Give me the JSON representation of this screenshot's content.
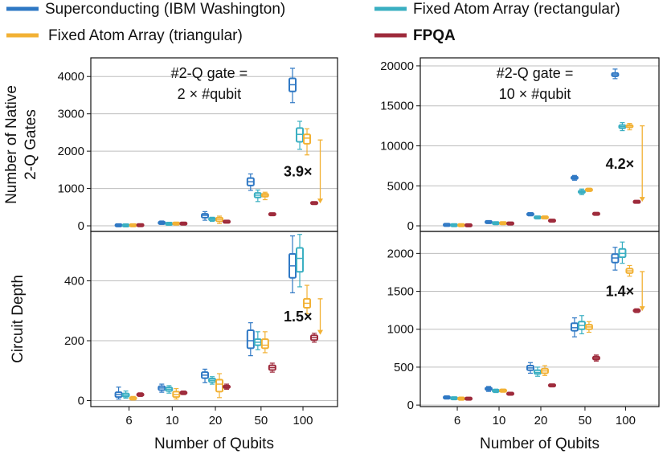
{
  "chart_data": {
    "type": "box",
    "legend": [
      {
        "name": "Superconducting (IBM Washington)",
        "color": "#2f78c4",
        "bold": false
      },
      {
        "name": "Fixed Atom Array (rectangular)",
        "color": "#3aafc2",
        "bold": false
      },
      {
        "name": "Fixed Atom Array (triangular)",
        "color": "#f2b134",
        "bold": false
      },
      {
        "name": "FPQA",
        "color": "#9e2a3b",
        "bold": true
      }
    ],
    "categories": [
      "6",
      "10",
      "20",
      "50",
      "100"
    ],
    "xlabel": "Number of Qubits",
    "panels": [
      {
        "id": "tl",
        "ylabel_lines": [
          "Number of Native",
          "2-Q Gates"
        ],
        "ylim": [
          -150,
          4500
        ],
        "yticks": [
          "0",
          "1000",
          "2000",
          "3000",
          "4000"
        ],
        "annotation_lines": [
          "#2-Q gate =",
          "2 × #qubit"
        ],
        "ratio": {
          "label": "3.9×",
          "from": 2300,
          "to": 600
        },
        "boxes": [
          [
            [
              5,
              10,
              15,
              20,
              30
            ],
            [
              3,
              8,
              12,
              16,
              24
            ],
            [
              4,
              9,
              13,
              18,
              26
            ],
            [
              10,
              14,
              18,
              22,
              28
            ]
          ],
          [
            [
              40,
              60,
              80,
              100,
              130
            ],
            [
              30,
              45,
              55,
              65,
              80
            ],
            [
              35,
              50,
              60,
              72,
              90
            ],
            [
              50,
              55,
              60,
              65,
              70
            ]
          ],
          [
            [
              150,
              220,
              280,
              320,
              380
            ],
            [
              120,
              160,
              185,
              200,
              230
            ],
            [
              60,
              120,
              170,
              220,
              260
            ],
            [
              90,
              100,
              110,
              120,
              130
            ]
          ],
          [
            [
              950,
              1080,
              1180,
              1280,
              1390
            ],
            [
              650,
              760,
              820,
              880,
              960
            ],
            [
              700,
              780,
              820,
              860,
              900
            ],
            [
              290,
              300,
              310,
              320,
              330
            ]
          ],
          [
            [
              3300,
              3600,
              3780,
              3950,
              4220
            ],
            [
              2050,
              2250,
              2450,
              2620,
              2800
            ],
            [
              1900,
              2200,
              2350,
              2450,
              2600
            ],
            [
              580,
              600,
              610,
              620,
              640
            ]
          ]
        ]
      },
      {
        "id": "tr",
        "ylabel_lines": [],
        "ylim": [
          -700,
          21000
        ],
        "yticks": [
          "0",
          "5000",
          "10000",
          "15000",
          "20000"
        ],
        "annotation_lines": [
          "#2-Q gate =",
          "10 × #qubit"
        ],
        "ratio": {
          "label": "4.2×",
          "from": 12500,
          "to": 3000
        },
        "boxes": [
          [
            [
              60,
              90,
              110,
              130,
              160
            ],
            [
              40,
              60,
              80,
              100,
              120
            ],
            [
              40,
              60,
              80,
              100,
              120
            ],
            [
              50,
              60,
              70,
              80,
              90
            ]
          ],
          [
            [
              350,
              420,
              470,
              520,
              580
            ],
            [
              250,
              300,
              330,
              360,
              400
            ],
            [
              250,
              300,
              330,
              360,
              400
            ],
            [
              250,
              270,
              290,
              310,
              330
            ]
          ],
          [
            [
              1250,
              1350,
              1450,
              1550,
              1650
            ],
            [
              950,
              1000,
              1050,
              1100,
              1150
            ],
            [
              950,
              1000,
              1050,
              1100,
              1150
            ],
            [
              600,
              620,
              640,
              660,
              680
            ]
          ],
          [
            [
              5700,
              5850,
              6000,
              6150,
              6300
            ],
            [
              3900,
              4100,
              4250,
              4400,
              4600
            ],
            [
              4300,
              4400,
              4500,
              4600,
              4700
            ],
            [
              1450,
              1480,
              1500,
              1520,
              1550
            ]
          ],
          [
            [
              18400,
              18700,
              18900,
              19100,
              19600
            ],
            [
              11900,
              12200,
              12400,
              12600,
              12900
            ],
            [
              12000,
              12300,
              12500,
              12600,
              12800
            ],
            [
              2950,
              2980,
              3000,
              3020,
              3050
            ]
          ]
        ]
      },
      {
        "id": "bl",
        "ylabel_lines": [
          "Circuit Depth"
        ],
        "ylim": [
          -20,
          565
        ],
        "yticks": [
          "0",
          "200",
          "400"
        ],
        "annotation_lines": [],
        "ratio": {
          "label": "1.5×",
          "from": 340,
          "to": 220
        },
        "boxes": [
          [
            [
              5,
              12,
              20,
              28,
              45
            ],
            [
              8,
              13,
              18,
              24,
              32
            ],
            [
              2,
              5,
              8,
              10,
              14
            ],
            [
              14,
              17,
              20,
              23,
              26
            ]
          ],
          [
            [
              28,
              35,
              42,
              48,
              55
            ],
            [
              25,
              32,
              38,
              44,
              50
            ],
            [
              5,
              12,
              20,
              30,
              40
            ],
            [
              20,
              23,
              26,
              29,
              32
            ]
          ],
          [
            [
              60,
              75,
              85,
              95,
              105
            ],
            [
              55,
              62,
              68,
              74,
              80
            ],
            [
              10,
              30,
              55,
              70,
              90
            ],
            [
              38,
              42,
              46,
              50,
              55
            ]
          ],
          [
            [
              150,
              175,
              200,
              235,
              260
            ],
            [
              170,
              185,
              195,
              205,
              230
            ],
            [
              160,
              175,
              185,
              205,
              230
            ],
            [
              95,
              102,
              110,
              118,
              125
            ]
          ],
          [
            [
              360,
              410,
              450,
              490,
              550
            ],
            [
              380,
              430,
              475,
              510,
              555
            ],
            [
              290,
              310,
              325,
              340,
              385
            ],
            [
              195,
              202,
              210,
              218,
              225
            ]
          ]
        ]
      },
      {
        "id": "br",
        "ylabel_lines": [],
        "ylim": [
          -20,
          2290
        ],
        "yticks": [
          "0",
          "500",
          "1000",
          "1500",
          "2000"
        ],
        "annotation_lines": [],
        "ratio": {
          "label": "1.4×",
          "from": 1760,
          "to": 1240
        },
        "boxes": [
          [
            [
              80,
              90,
              100,
              110,
              120
            ],
            [
              75,
              82,
              90,
              98,
              105
            ],
            [
              65,
              75,
              85,
              95,
              105
            ],
            [
              75,
              80,
              85,
              90,
              95
            ]
          ],
          [
            [
              180,
              200,
              215,
              230,
              245
            ],
            [
              165,
              178,
              188,
              198,
              210
            ],
            [
              170,
              180,
              190,
              200,
              210
            ],
            [
              140,
              145,
              150,
              155,
              160
            ]
          ],
          [
            [
              420,
              460,
              490,
              520,
              560
            ],
            [
              380,
              410,
              430,
              460,
              500
            ],
            [
              390,
              420,
              450,
              480,
              520
            ],
            [
              250,
              255,
              260,
              265,
              270
            ]
          ],
          [
            [
              900,
              980,
              1020,
              1080,
              1150
            ],
            [
              940,
              1000,
              1050,
              1100,
              1180
            ],
            [
              960,
              1000,
              1030,
              1060,
              1100
            ],
            [
              580,
              600,
              620,
              640,
              660
            ]
          ],
          [
            [
              1780,
              1880,
              1940,
              1990,
              2080
            ],
            [
              1870,
              1950,
              2000,
              2060,
              2150
            ],
            [
              1700,
              1740,
              1770,
              1800,
              1840
            ],
            [
              1220,
              1235,
              1245,
              1255,
              1270
            ]
          ]
        ]
      }
    ]
  }
}
